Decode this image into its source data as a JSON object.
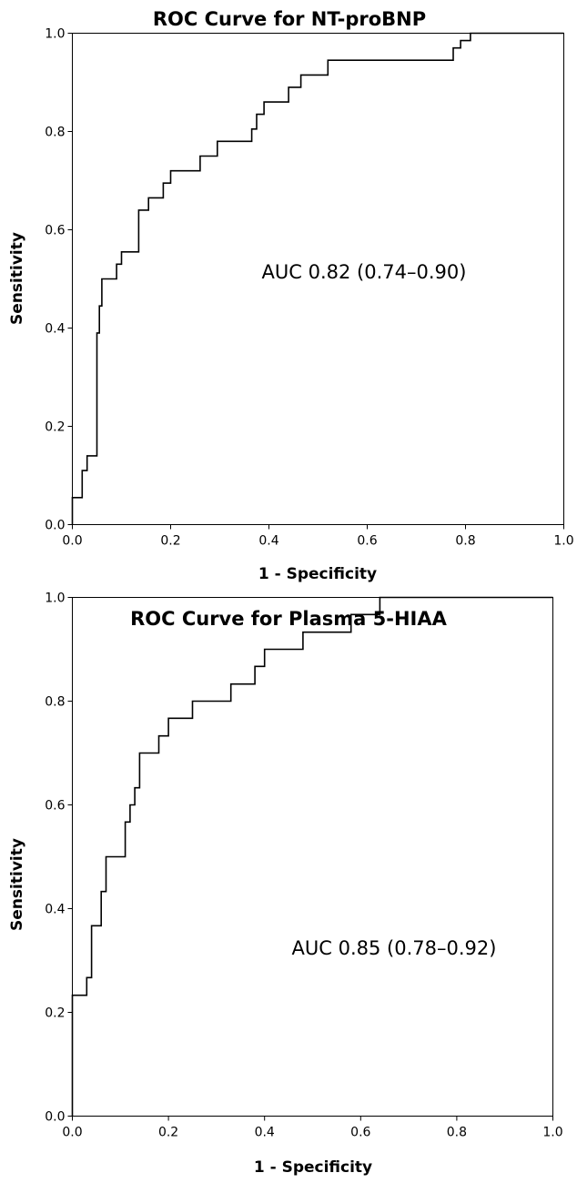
{
  "chart_data": [
    {
      "type": "line",
      "title": "ROC Curve for NT-proBNP",
      "xlabel": "1 - Specificity",
      "ylabel": "Sensitivity",
      "xlim": [
        0.0,
        1.0
      ],
      "ylim": [
        0.0,
        1.0
      ],
      "xticks": [
        "0.0",
        "0.2",
        "0.4",
        "0.6",
        "0.8",
        "1.0"
      ],
      "yticks": [
        "0.0",
        "0.2",
        "0.4",
        "0.6",
        "0.8",
        "1.0"
      ],
      "grid": false,
      "annotation": "AUC 0.82 (0.74–0.90)",
      "series": [
        {
          "x": [
            0,
            0,
            0.02,
            0.02,
            0.03,
            0.03,
            0.05,
            0.05,
            0.055,
            0.055,
            0.06,
            0.06,
            0.09,
            0.09,
            0.1,
            0.1,
            0.135,
            0.135,
            0.155,
            0.155,
            0.185,
            0.185,
            0.2,
            0.2,
            0.26,
            0.26,
            0.295,
            0.295,
            0.365,
            0.365,
            0.375,
            0.375,
            0.39,
            0.39,
            0.44,
            0.44,
            0.465,
            0.465,
            0.52,
            0.52,
            0.775,
            0.775,
            0.79,
            0.79,
            0.81,
            0.81,
            1.0
          ],
          "y": [
            0,
            0.055,
            0.055,
            0.11,
            0.11,
            0.14,
            0.14,
            0.39,
            0.39,
            0.445,
            0.445,
            0.5,
            0.5,
            0.53,
            0.53,
            0.555,
            0.555,
            0.64,
            0.64,
            0.665,
            0.665,
            0.695,
            0.695,
            0.72,
            0.72,
            0.75,
            0.75,
            0.78,
            0.78,
            0.805,
            0.805,
            0.835,
            0.835,
            0.86,
            0.86,
            0.89,
            0.89,
            0.915,
            0.915,
            0.945,
            0.945,
            0.97,
            0.97,
            0.985,
            0.985,
            1.0,
            1.0
          ]
        }
      ]
    },
    {
      "type": "line",
      "title": "ROC Curve for Plasma 5-HIAA",
      "xlabel": "1 - Specificity",
      "ylabel": "Sensitivity",
      "xlim": [
        0.0,
        1.0
      ],
      "ylim": [
        0.0,
        1.0
      ],
      "xticks": [
        "0.0",
        "0.2",
        "0.4",
        "0.6",
        "0.8",
        "1.0"
      ],
      "yticks": [
        "0.0",
        "0.2",
        "0.4",
        "0.6",
        "0.8",
        "1.0"
      ],
      "grid": false,
      "annotation": "AUC 0.85 (0.78–0.92)",
      "series": [
        {
          "x": [
            0,
            0,
            0.03,
            0.03,
            0.04,
            0.04,
            0.06,
            0.06,
            0.07,
            0.07,
            0.11,
            0.11,
            0.12,
            0.12,
            0.13,
            0.13,
            0.14,
            0.14,
            0.18,
            0.18,
            0.2,
            0.2,
            0.25,
            0.25,
            0.33,
            0.33,
            0.38,
            0.38,
            0.4,
            0.4,
            0.48,
            0.48,
            0.58,
            0.58,
            0.64,
            0.64,
            1.0
          ],
          "y": [
            0,
            0.233,
            0.233,
            0.267,
            0.267,
            0.367,
            0.367,
            0.433,
            0.433,
            0.5,
            0.5,
            0.567,
            0.567,
            0.6,
            0.6,
            0.633,
            0.633,
            0.7,
            0.7,
            0.733,
            0.733,
            0.767,
            0.767,
            0.8,
            0.8,
            0.833,
            0.833,
            0.867,
            0.867,
            0.9,
            0.9,
            0.933,
            0.933,
            0.967,
            0.967,
            1.0,
            1.0
          ]
        }
      ]
    }
  ]
}
